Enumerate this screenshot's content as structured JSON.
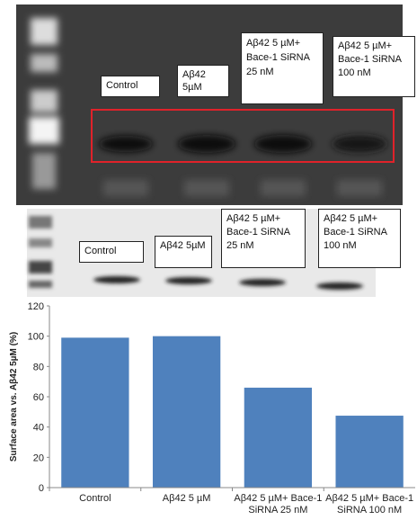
{
  "gel_top": {
    "labels": [
      "Control",
      "Aβ42 5µM",
      "Aβ42 5 µM+ Bace-1 SiRNA 25 nM",
      "Aβ42 5 µM+ Bace-1 SiRNA 100 nM"
    ]
  },
  "gel_bottom": {
    "labels": [
      "Control",
      "Aβ42 5µM",
      "Aβ42 5 µM+ Bace-1 SiRNA 25 nM",
      "Aβ42 5 µM+ Bace-1 SiRNA 100 nM"
    ]
  },
  "chart_data": {
    "type": "bar",
    "y_label": "Surface area vs. Aβ42 5µM (%)",
    "categories": [
      "Control",
      "Aβ42 5 µM",
      "Aβ42 5 µM+ Bace-1 SiRNA 25 nM",
      "Aβ42 5 µM+ Bace-1 SiRNA 100 nM"
    ],
    "values": [
      99,
      100,
      66,
      47.5
    ],
    "color": "#4f81bd",
    "ylim": [
      0,
      120
    ],
    "yticks": [
      0,
      20,
      40,
      60,
      80,
      100,
      120
    ],
    "grid": false
  }
}
